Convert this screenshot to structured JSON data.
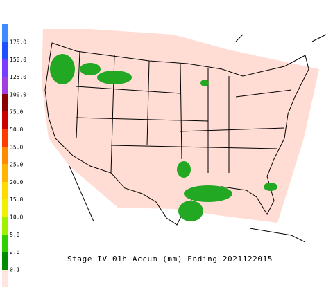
{
  "legend": {
    "labels": [
      "175.0",
      "150.0",
      "125.0",
      "100.0",
      "75.0",
      "50.0",
      "35.0",
      "25.0",
      "20.0",
      "15.0",
      "10.0",
      "5.0",
      "2.0",
      "0.1"
    ]
  },
  "caption": "Stage IV 01h Accum (mm) Ending 2021122015"
}
